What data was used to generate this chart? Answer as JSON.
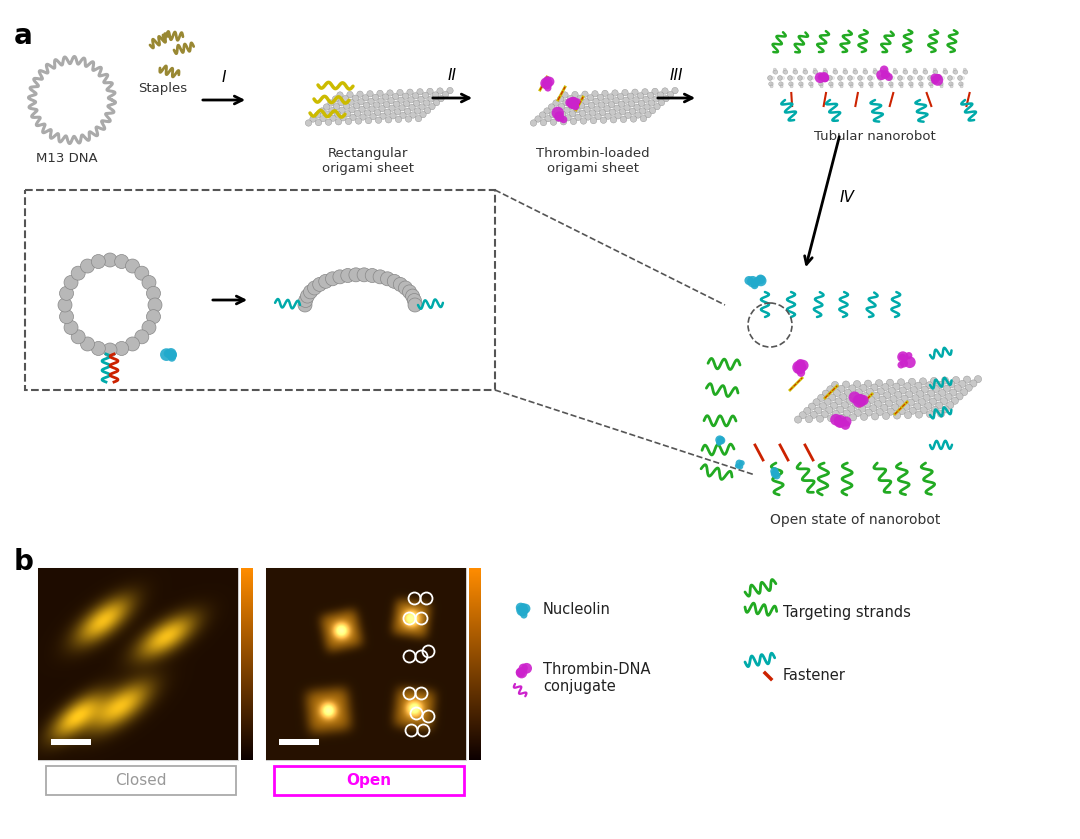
{
  "fig_width": 10.8,
  "fig_height": 8.39,
  "dpi": 100,
  "bg_color": "#ffffff",
  "panel_a_label": "a",
  "panel_b_label": "b",
  "label_fontsize": 20,
  "text_fontsize": 9.5,
  "labels": {
    "m13_dna": "M13 DNA",
    "staples": "Staples",
    "rect_origami": "Rectangular\norigami sheet",
    "thrombin_loaded": "Thrombin-loaded\norigami sheet",
    "tubular_nanorobot": "Tubular nanorobot",
    "open_state": "Open state of nanorobot",
    "step_I": "I",
    "step_II": "II",
    "step_III": "III",
    "step_IV": "IV",
    "closed": "Closed",
    "open": "Open",
    "nucleolin": "Nucleolin",
    "thrombin_dna": "Thrombin-DNA\nconjugate",
    "targeting_strands": "Targeting strands",
    "fastener": "Fastener"
  },
  "colors": {
    "arrow": "#000000",
    "m13_circle": "#aaaaaa",
    "origami_grid": "#c8c8c8",
    "origami_edge": "#909090",
    "thrombin_magenta": "#cc22cc",
    "targeting_green": "#22aa22",
    "fastener_cyan": "#00aaaa",
    "nucleolin_cyan": "#22aacc",
    "dna_yellow": "#ccbb00",
    "dna_red": "#cc2200",
    "staple_olive": "#998833",
    "open_label_color": "#ff00ff",
    "closed_label_color": "#999999",
    "afm_dark": "#2a1000",
    "afm_mid": "#6a3500"
  }
}
